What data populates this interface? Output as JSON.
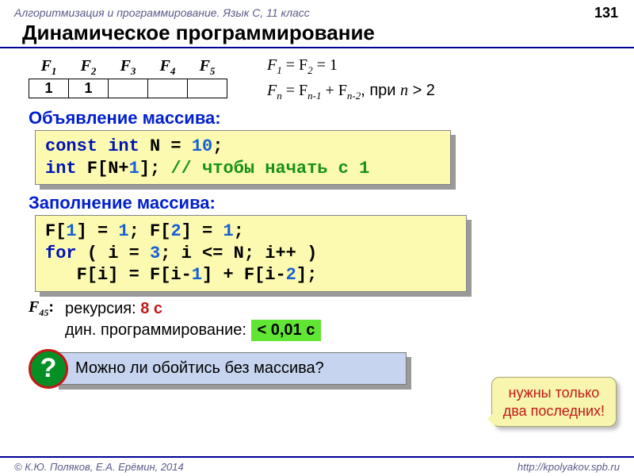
{
  "header": "Алгоритмизация и программирование. Язык С, 11 класс",
  "page_number": "131",
  "title": "Динамическое программирование",
  "table": {
    "headers": [
      "F",
      "F",
      "F",
      "F",
      "F"
    ],
    "subs": [
      "1",
      "2",
      "3",
      "4",
      "5"
    ],
    "values": [
      "1",
      "1",
      "",
      "",
      ""
    ]
  },
  "math": {
    "line1_lhs": "F",
    "line1_sub1": "1",
    "line1_mid": " = F",
    "line1_sub2": "2",
    "line1_rhs": " = 1",
    "line2_a": "F",
    "line2_sa": "n",
    "line2_b": " = F",
    "line2_sb": "n-1",
    "line2_c": " + F",
    "line2_sc": "n-2",
    "line2_tail": ", при ",
    "line2_n": "n",
    "line2_gt": " > 2"
  },
  "sec1": "Объявление массива:",
  "code1": {
    "t1": "const int",
    "t2": " N = ",
    "t3": "10",
    "t4": ";",
    "t5": "int",
    "t6": " F[N+",
    "t7": "1",
    "t8": "]; ",
    "t9": "// чтобы начать с 1"
  },
  "sec2": "Заполнение массива:",
  "code2": {
    "l1a": "F[",
    "l1b": "1",
    "l1c": "] = ",
    "l1d": "1",
    "l1e": "; F[",
    "l1f": "2",
    "l1g": "] = ",
    "l1h": "1",
    "l1i": ";",
    "l2a": "for",
    "l2b": " ( i = ",
    "l2c": "3",
    "l2d": "; i <= N; i++ )",
    "l3a": "   F[i] = F[i-",
    "l3b": "1",
    "l3c": "] + F[i-",
    "l3d": "2",
    "l3e": "];"
  },
  "results": {
    "label_f": "F",
    "label_sub": "45",
    "label_colon": ":",
    "r1_text": "рекурсия: ",
    "r1_val": "8 с",
    "r2_text": "дин. программирование: ",
    "r2_val": "< 0,01 с"
  },
  "question_mark": "?",
  "question": "Можно ли обойтись без массива?",
  "callout_l1": "нужны только",
  "callout_l2": "два последних!",
  "footer_left": "© К.Ю. Поляков, Е.А. Ерёмин, 2014",
  "footer_right": "http://kpolyakov.spb.ru",
  "colors": {
    "accent": "#000095",
    "kw": "#0013b7",
    "num": "#1560d4",
    "cmt": "#179217",
    "code_bg": "#fbfab0",
    "qbox_bg": "#c6d4ef",
    "green_highlight": "#60e534",
    "red": "#c21818",
    "qcircle_bg": "#059026"
  }
}
